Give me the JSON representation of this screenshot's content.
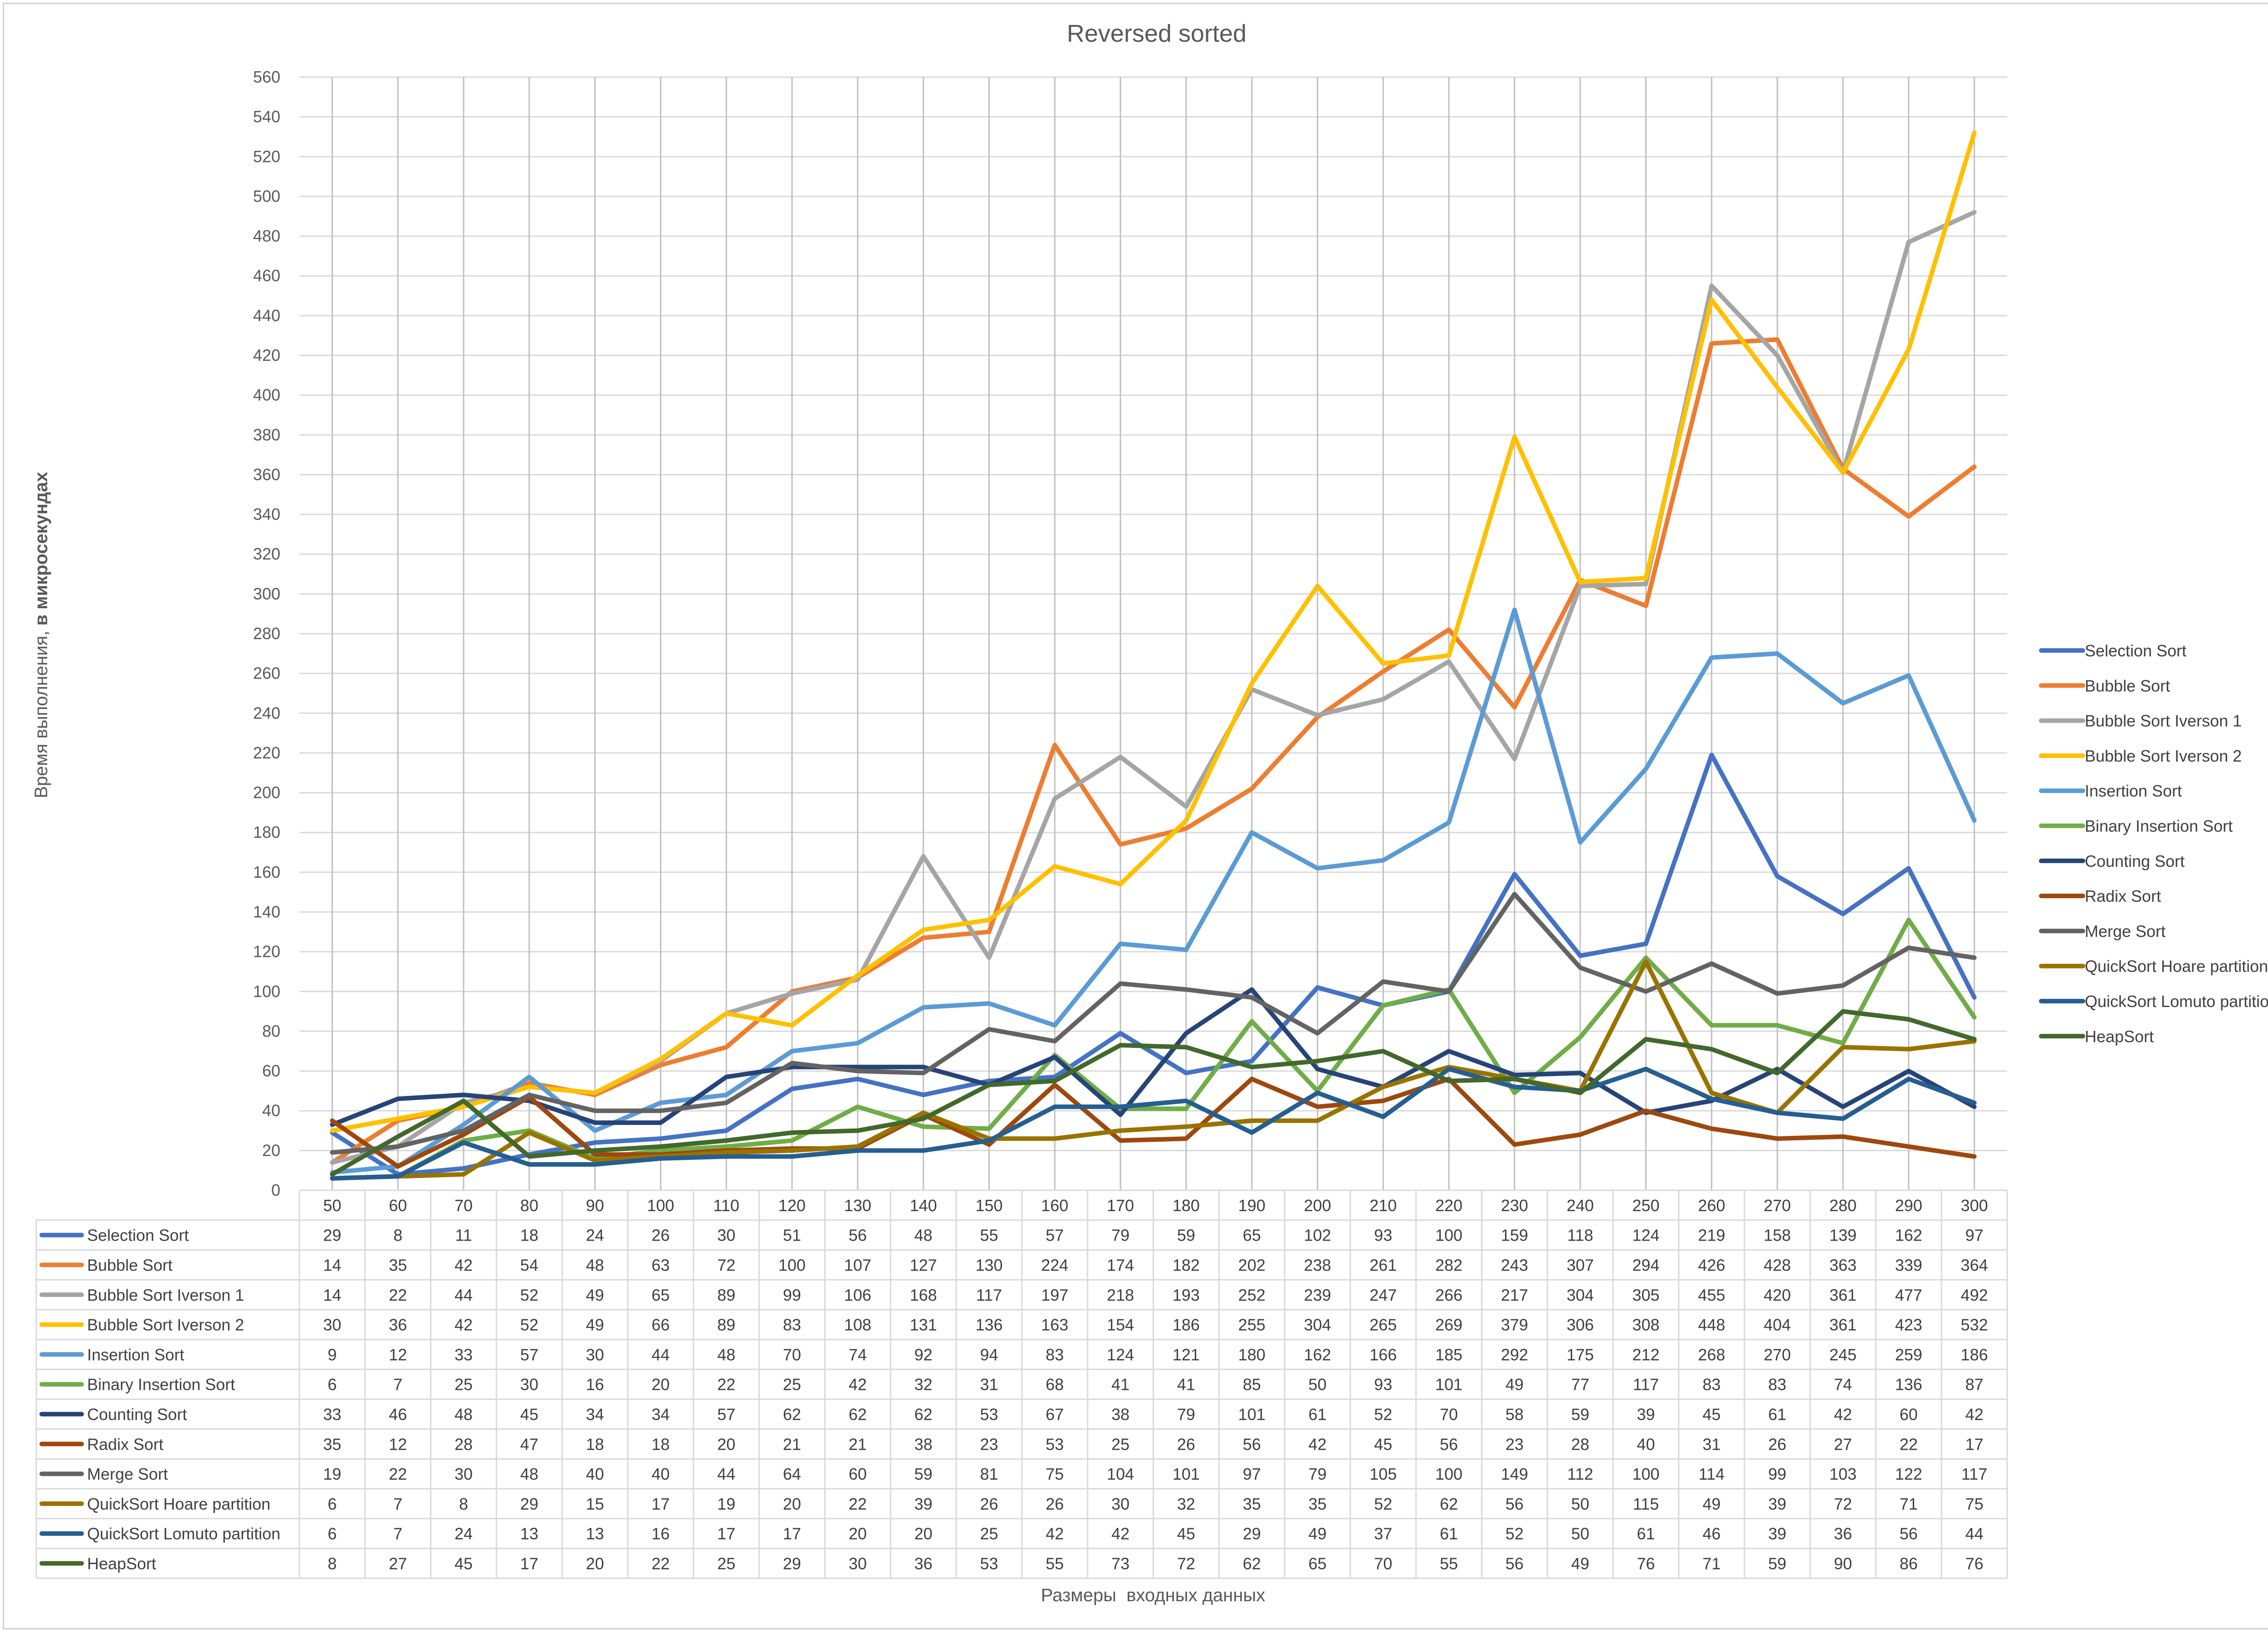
{
  "chart_data": {
    "type": "line",
    "title": "Reversed sorted",
    "xlabel": "Размеры  входных данных",
    "ylabel_plain": "Время выполнения, ",
    "ylabel_bold": "в микросекундах",
    "ylim": [
      0,
      560
    ],
    "ystep": 20,
    "grid": "vertical lines at categories, horizontal major gridlines",
    "legend": "right",
    "data_table": true,
    "categories": [
      "50",
      "60",
      "70",
      "80",
      "90",
      "100",
      "110",
      "120",
      "130",
      "140",
      "150",
      "160",
      "170",
      "180",
      "190",
      "200",
      "210",
      "220",
      "230",
      "240",
      "250",
      "260",
      "270",
      "280",
      "290",
      "300"
    ],
    "series": [
      {
        "name": "Selection Sort",
        "color": "#4472C4",
        "values": [
          29,
          8,
          11,
          18,
          24,
          26,
          30,
          51,
          56,
          48,
          55,
          57,
          79,
          59,
          65,
          102,
          93,
          100,
          159,
          118,
          124,
          219,
          158,
          139,
          162,
          97
        ]
      },
      {
        "name": "Bubble Sort",
        "color": "#ED7D31",
        "values": [
          14,
          35,
          42,
          54,
          48,
          63,
          72,
          100,
          107,
          127,
          130,
          224,
          174,
          182,
          202,
          238,
          261,
          282,
          243,
          307,
          294,
          426,
          428,
          363,
          339,
          364
        ]
      },
      {
        "name": "Bubble Sort Iverson 1",
        "color": "#A5A5A5",
        "values": [
          14,
          22,
          44,
          52,
          49,
          65,
          89,
          99,
          106,
          168,
          117,
          197,
          218,
          193,
          252,
          239,
          247,
          266,
          217,
          304,
          305,
          455,
          420,
          361,
          477,
          492
        ]
      },
      {
        "name": "Bubble Sort Iverson 2",
        "color": "#FFC000",
        "values": [
          30,
          36,
          42,
          52,
          49,
          66,
          89,
          83,
          108,
          131,
          136,
          163,
          154,
          186,
          255,
          304,
          265,
          269,
          379,
          306,
          308,
          448,
          404,
          361,
          423,
          532
        ]
      },
      {
        "name": "Insertion Sort",
        "color": "#5B9BD5",
        "values": [
          9,
          12,
          33,
          57,
          30,
          44,
          48,
          70,
          74,
          92,
          94,
          83,
          124,
          121,
          180,
          162,
          166,
          185,
          292,
          175,
          212,
          268,
          270,
          245,
          259,
          186
        ]
      },
      {
        "name": "Binary Insertion Sort",
        "color": "#70AD47",
        "values": [
          6,
          7,
          25,
          30,
          16,
          20,
          22,
          25,
          42,
          32,
          31,
          68,
          41,
          41,
          85,
          50,
          93,
          101,
          49,
          77,
          117,
          83,
          83,
          74,
          136,
          87
        ]
      },
      {
        "name": "Counting Sort",
        "color": "#264478",
        "values": [
          33,
          46,
          48,
          45,
          34,
          34,
          57,
          62,
          62,
          62,
          53,
          67,
          38,
          79,
          101,
          61,
          52,
          70,
          58,
          59,
          39,
          45,
          61,
          42,
          60,
          42
        ]
      },
      {
        "name": "Radix Sort",
        "color": "#9E480E",
        "values": [
          35,
          12,
          28,
          47,
          18,
          18,
          20,
          21,
          21,
          38,
          23,
          53,
          25,
          26,
          56,
          42,
          45,
          56,
          23,
          28,
          40,
          31,
          26,
          27,
          22,
          17
        ]
      },
      {
        "name": "Merge Sort",
        "color": "#636363",
        "values": [
          19,
          22,
          30,
          48,
          40,
          40,
          44,
          64,
          60,
          59,
          81,
          75,
          104,
          101,
          97,
          79,
          105,
          100,
          149,
          112,
          100,
          114,
          99,
          103,
          122,
          117
        ]
      },
      {
        "name": "QuickSort Hoare partition",
        "color": "#997300",
        "values": [
          6,
          7,
          8,
          29,
          15,
          17,
          19,
          20,
          22,
          39,
          26,
          26,
          30,
          32,
          35,
          35,
          52,
          62,
          56,
          50,
          115,
          49,
          39,
          72,
          71,
          75
        ]
      },
      {
        "name": "QuickSort Lomuto partition",
        "color": "#255E91",
        "values": [
          6,
          7,
          24,
          13,
          13,
          16,
          17,
          17,
          20,
          20,
          25,
          42,
          42,
          45,
          29,
          49,
          37,
          61,
          52,
          50,
          61,
          46,
          39,
          36,
          56,
          44
        ]
      },
      {
        "name": "HeapSort",
        "color": "#43682B",
        "values": [
          8,
          27,
          45,
          17,
          20,
          22,
          25,
          29,
          30,
          36,
          53,
          55,
          73,
          72,
          62,
          65,
          70,
          55,
          56,
          49,
          76,
          71,
          59,
          90,
          86,
          76
        ]
      }
    ]
  }
}
